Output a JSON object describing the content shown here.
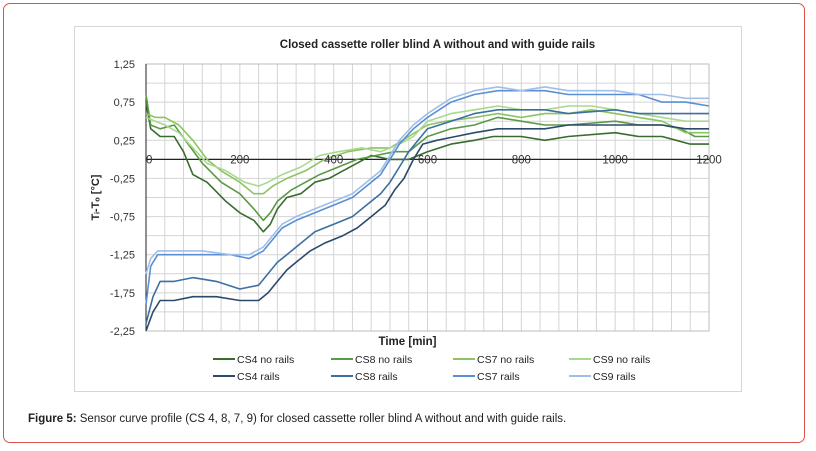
{
  "caption": {
    "label": "Figure 5:",
    "text": " Sensor curve profile (CS 4, 8, 7, 9) for closed cassette roller blind A without and with guide rails."
  },
  "chart_data": {
    "type": "line",
    "title": "Closed cassette roller blind A without and with guide rails",
    "xlabel": "Time [min]",
    "ylabel": "Tᵢ-Tₒ [°C]",
    "xlim": [
      0,
      1200
    ],
    "ylim": [
      -2.25,
      1.25
    ],
    "xticks": [
      "0",
      "200",
      "400",
      "600",
      "800",
      "1000",
      "1200"
    ],
    "yticks": [
      "1,25",
      "0,75",
      "0,25",
      "-0,25",
      "-0,75",
      "-1,25",
      "-1,75",
      "-2,25"
    ],
    "grid": true,
    "legend_position": "bottom",
    "series": [
      {
        "name": "CS4 no rails",
        "color": "#3a6b2f",
        "points": [
          [
            0,
            0.75
          ],
          [
            10,
            0.4
          ],
          [
            30,
            0.3
          ],
          [
            60,
            0.3
          ],
          [
            80,
            0.1
          ],
          [
            100,
            -0.2
          ],
          [
            130,
            -0.3
          ],
          [
            170,
            -0.55
          ],
          [
            200,
            -0.7
          ],
          [
            230,
            -0.8
          ],
          [
            250,
            -0.95
          ],
          [
            265,
            -0.85
          ],
          [
            280,
            -0.65
          ],
          [
            300,
            -0.5
          ],
          [
            330,
            -0.45
          ],
          [
            360,
            -0.3
          ],
          [
            390,
            -0.25
          ],
          [
            420,
            -0.15
          ],
          [
            450,
            -0.05
          ],
          [
            480,
            0.05
          ],
          [
            520,
            0.0
          ],
          [
            560,
            0.0
          ],
          [
            600,
            0.1
          ],
          [
            650,
            0.2
          ],
          [
            700,
            0.25
          ],
          [
            740,
            0.3
          ],
          [
            800,
            0.3
          ],
          [
            850,
            0.25
          ],
          [
            900,
            0.3
          ],
          [
            1000,
            0.35
          ],
          [
            1050,
            0.3
          ],
          [
            1100,
            0.3
          ],
          [
            1130,
            0.25
          ],
          [
            1160,
            0.2
          ],
          [
            1200,
            0.2
          ]
        ]
      },
      {
        "name": "CS8 no rails",
        "color": "#5b9a45",
        "points": [
          [
            0,
            0.85
          ],
          [
            10,
            0.45
          ],
          [
            30,
            0.4
          ],
          [
            60,
            0.45
          ],
          [
            90,
            0.2
          ],
          [
            120,
            -0.05
          ],
          [
            160,
            -0.3
          ],
          [
            200,
            -0.45
          ],
          [
            230,
            -0.65
          ],
          [
            250,
            -0.8
          ],
          [
            265,
            -0.7
          ],
          [
            280,
            -0.55
          ],
          [
            310,
            -0.4
          ],
          [
            340,
            -0.3
          ],
          [
            370,
            -0.2
          ],
          [
            410,
            -0.1
          ],
          [
            450,
            0.0
          ],
          [
            490,
            0.05
          ],
          [
            530,
            0.1
          ],
          [
            560,
            0.1
          ],
          [
            600,
            0.3
          ],
          [
            650,
            0.4
          ],
          [
            700,
            0.45
          ],
          [
            750,
            0.55
          ],
          [
            800,
            0.5
          ],
          [
            850,
            0.45
          ],
          [
            900,
            0.45
          ],
          [
            1000,
            0.5
          ],
          [
            1050,
            0.45
          ],
          [
            1100,
            0.45
          ],
          [
            1140,
            0.4
          ],
          [
            1170,
            0.3
          ],
          [
            1200,
            0.3
          ]
        ]
      },
      {
        "name": "CS7 no rails",
        "color": "#8cc464",
        "points": [
          [
            0,
            0.6
          ],
          [
            20,
            0.55
          ],
          [
            40,
            0.55
          ],
          [
            70,
            0.45
          ],
          [
            100,
            0.25
          ],
          [
            130,
            0.0
          ],
          [
            160,
            -0.15
          ],
          [
            200,
            -0.3
          ],
          [
            230,
            -0.45
          ],
          [
            250,
            -0.45
          ],
          [
            270,
            -0.35
          ],
          [
            300,
            -0.25
          ],
          [
            340,
            -0.15
          ],
          [
            380,
            0.0
          ],
          [
            430,
            0.1
          ],
          [
            480,
            0.15
          ],
          [
            520,
            0.15
          ],
          [
            560,
            0.3
          ],
          [
            600,
            0.45
          ],
          [
            640,
            0.5
          ],
          [
            700,
            0.55
          ],
          [
            750,
            0.6
          ],
          [
            800,
            0.55
          ],
          [
            850,
            0.6
          ],
          [
            900,
            0.6
          ],
          [
            950,
            0.65
          ],
          [
            1000,
            0.6
          ],
          [
            1050,
            0.55
          ],
          [
            1100,
            0.5
          ],
          [
            1150,
            0.35
          ],
          [
            1200,
            0.35
          ]
        ]
      },
      {
        "name": "CS9 no rails",
        "color": "#a9d98c",
        "points": [
          [
            0,
            0.55
          ],
          [
            20,
            0.5
          ],
          [
            40,
            0.45
          ],
          [
            70,
            0.35
          ],
          [
            100,
            0.15
          ],
          [
            130,
            -0.05
          ],
          [
            170,
            -0.15
          ],
          [
            210,
            -0.3
          ],
          [
            240,
            -0.35
          ],
          [
            260,
            -0.3
          ],
          [
            290,
            -0.2
          ],
          [
            330,
            -0.1
          ],
          [
            370,
            0.05
          ],
          [
            410,
            0.1
          ],
          [
            460,
            0.15
          ],
          [
            500,
            0.1
          ],
          [
            540,
            0.2
          ],
          [
            570,
            0.3
          ],
          [
            600,
            0.5
          ],
          [
            650,
            0.6
          ],
          [
            700,
            0.65
          ],
          [
            750,
            0.7
          ],
          [
            800,
            0.65
          ],
          [
            850,
            0.65
          ],
          [
            900,
            0.7
          ],
          [
            950,
            0.7
          ],
          [
            1000,
            0.65
          ],
          [
            1050,
            0.6
          ],
          [
            1100,
            0.55
          ],
          [
            1150,
            0.5
          ],
          [
            1200,
            0.5
          ]
        ]
      },
      {
        "name": "CS4 rails",
        "color": "#2b4a6b",
        "points": [
          [
            0,
            -2.25
          ],
          [
            15,
            -2.0
          ],
          [
            30,
            -1.85
          ],
          [
            60,
            -1.85
          ],
          [
            100,
            -1.8
          ],
          [
            150,
            -1.8
          ],
          [
            200,
            -1.85
          ],
          [
            240,
            -1.85
          ],
          [
            260,
            -1.75
          ],
          [
            280,
            -1.6
          ],
          [
            300,
            -1.45
          ],
          [
            320,
            -1.35
          ],
          [
            350,
            -1.2
          ],
          [
            380,
            -1.1
          ],
          [
            420,
            -1.0
          ],
          [
            450,
            -0.9
          ],
          [
            480,
            -0.75
          ],
          [
            510,
            -0.6
          ],
          [
            530,
            -0.4
          ],
          [
            550,
            -0.25
          ],
          [
            570,
            0.0
          ],
          [
            590,
            0.2
          ],
          [
            620,
            0.25
          ],
          [
            660,
            0.3
          ],
          [
            700,
            0.35
          ],
          [
            750,
            0.4
          ],
          [
            800,
            0.4
          ],
          [
            850,
            0.4
          ],
          [
            900,
            0.45
          ],
          [
            1000,
            0.45
          ],
          [
            1050,
            0.45
          ],
          [
            1100,
            0.45
          ],
          [
            1150,
            0.4
          ],
          [
            1200,
            0.4
          ]
        ]
      },
      {
        "name": "CS8 rails",
        "color": "#3d6fa0",
        "points": [
          [
            0,
            -2.15
          ],
          [
            15,
            -1.8
          ],
          [
            30,
            -1.6
          ],
          [
            60,
            -1.6
          ],
          [
            100,
            -1.55
          ],
          [
            150,
            -1.6
          ],
          [
            200,
            -1.7
          ],
          [
            240,
            -1.65
          ],
          [
            260,
            -1.5
          ],
          [
            280,
            -1.35
          ],
          [
            300,
            -1.25
          ],
          [
            330,
            -1.1
          ],
          [
            360,
            -0.95
          ],
          [
            400,
            -0.85
          ],
          [
            440,
            -0.75
          ],
          [
            470,
            -0.6
          ],
          [
            500,
            -0.45
          ],
          [
            520,
            -0.3
          ],
          [
            540,
            -0.1
          ],
          [
            560,
            0.1
          ],
          [
            580,
            0.25
          ],
          [
            600,
            0.4
          ],
          [
            650,
            0.5
          ],
          [
            700,
            0.6
          ],
          [
            750,
            0.65
          ],
          [
            800,
            0.65
          ],
          [
            850,
            0.65
          ],
          [
            900,
            0.6
          ],
          [
            1000,
            0.65
          ],
          [
            1050,
            0.6
          ],
          [
            1100,
            0.6
          ],
          [
            1150,
            0.6
          ],
          [
            1200,
            0.6
          ]
        ]
      },
      {
        "name": "CS7 rails",
        "color": "#5a8fd6",
        "points": [
          [
            0,
            -1.9
          ],
          [
            10,
            -1.4
          ],
          [
            25,
            -1.25
          ],
          [
            60,
            -1.25
          ],
          [
            120,
            -1.25
          ],
          [
            180,
            -1.25
          ],
          [
            220,
            -1.3
          ],
          [
            250,
            -1.2
          ],
          [
            270,
            -1.05
          ],
          [
            290,
            -0.9
          ],
          [
            320,
            -0.8
          ],
          [
            360,
            -0.7
          ],
          [
            400,
            -0.6
          ],
          [
            440,
            -0.5
          ],
          [
            470,
            -0.35
          ],
          [
            500,
            -0.2
          ],
          [
            520,
            0.0
          ],
          [
            540,
            0.2
          ],
          [
            570,
            0.4
          ],
          [
            600,
            0.55
          ],
          [
            650,
            0.75
          ],
          [
            700,
            0.85
          ],
          [
            750,
            0.9
          ],
          [
            800,
            0.9
          ],
          [
            850,
            0.9
          ],
          [
            900,
            0.85
          ],
          [
            950,
            0.85
          ],
          [
            1000,
            0.85
          ],
          [
            1050,
            0.85
          ],
          [
            1100,
            0.75
          ],
          [
            1150,
            0.75
          ],
          [
            1200,
            0.7
          ]
        ]
      },
      {
        "name": "CS9 rails",
        "color": "#9fbfe8",
        "points": [
          [
            0,
            -1.5
          ],
          [
            10,
            -1.3
          ],
          [
            25,
            -1.2
          ],
          [
            60,
            -1.2
          ],
          [
            120,
            -1.2
          ],
          [
            180,
            -1.25
          ],
          [
            220,
            -1.25
          ],
          [
            250,
            -1.15
          ],
          [
            270,
            -1.0
          ],
          [
            290,
            -0.85
          ],
          [
            320,
            -0.75
          ],
          [
            360,
            -0.65
          ],
          [
            400,
            -0.55
          ],
          [
            440,
            -0.45
          ],
          [
            470,
            -0.3
          ],
          [
            500,
            -0.15
          ],
          [
            520,
            0.05
          ],
          [
            540,
            0.25
          ],
          [
            570,
            0.45
          ],
          [
            600,
            0.6
          ],
          [
            650,
            0.8
          ],
          [
            700,
            0.9
          ],
          [
            750,
            0.95
          ],
          [
            800,
            0.9
          ],
          [
            850,
            0.95
          ],
          [
            900,
            0.9
          ],
          [
            950,
            0.9
          ],
          [
            1000,
            0.9
          ],
          [
            1050,
            0.85
          ],
          [
            1100,
            0.85
          ],
          [
            1150,
            0.8
          ],
          [
            1200,
            0.8
          ]
        ]
      }
    ]
  }
}
